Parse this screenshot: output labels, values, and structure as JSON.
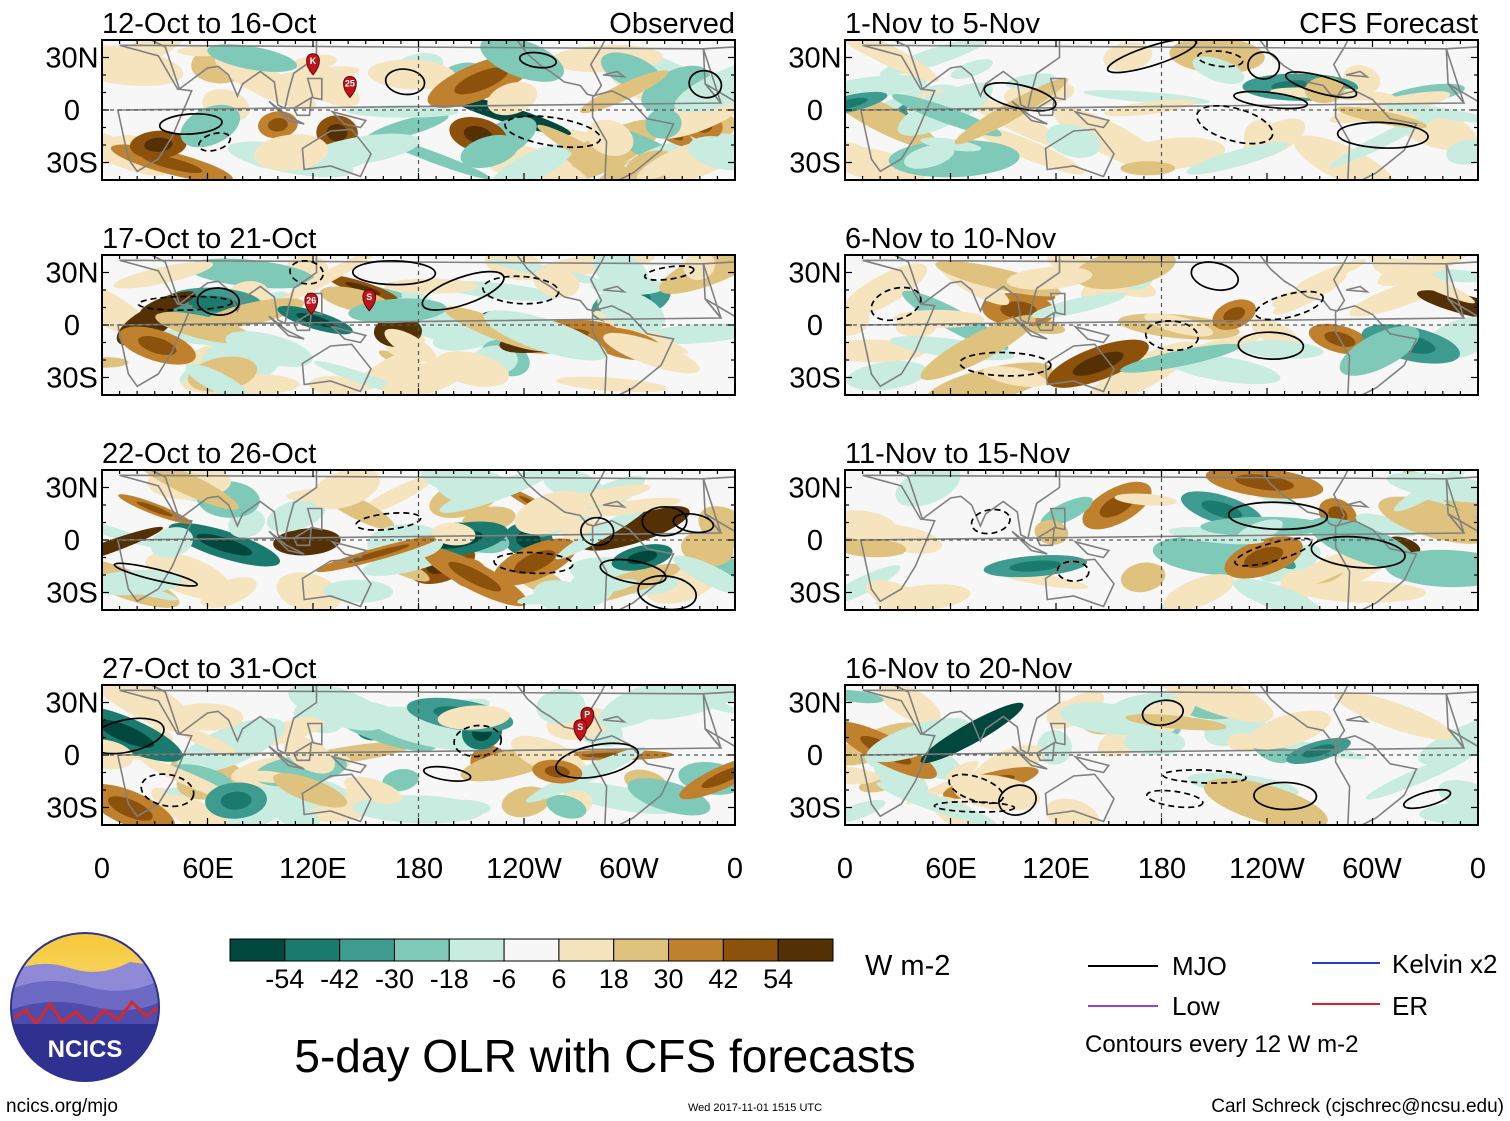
{
  "title": "5-day OLR with CFS forecasts",
  "branding": {
    "logo_text": "NCICS",
    "site": "ncics.org/mjo",
    "timestamp": "Wed 2017-11-01 1515 UTC",
    "author": "Carl Schreck (cjschrec@ncsu.edu)"
  },
  "column_labels": {
    "observed": "Observed",
    "forecast": "CFS Forecast"
  },
  "colorbar": {
    "unit": "W m-2",
    "tick_labels": [
      "-54",
      "-42",
      "-30",
      "-18",
      "-6",
      "6",
      "18",
      "30",
      "42",
      "54"
    ],
    "colors": [
      "#00473d",
      "#1b7a6e",
      "#3d9c8f",
      "#7fc9b8",
      "#c8ece0",
      "#f7f7f7",
      "#f5e4bd",
      "#dfc27d",
      "#bf812d",
      "#8c510a",
      "#543005"
    ]
  },
  "legend": {
    "items": [
      {
        "label": "MJO",
        "color": "#000000"
      },
      {
        "label": "Kelvin x2",
        "color": "#1f3fd0"
      },
      {
        "label": "Low",
        "color": "#9b3ed6"
      },
      {
        "label": "ER",
        "color": "#e0201f"
      }
    ],
    "note": "Contours every 12 W m-2"
  },
  "axes": {
    "y_tick_labels": [
      "30N",
      "0",
      "30S"
    ],
    "x_tick_labels": [
      "0",
      "60E",
      "120E",
      "180",
      "120W",
      "60W",
      "0"
    ]
  },
  "chart_data": {
    "type": "heatmap",
    "variable": "OLR anomaly",
    "units": "W m-2",
    "lon_range": [
      0,
      360
    ],
    "lat_range": [
      -40,
      40
    ],
    "panels": [
      {
        "id": "obs-1",
        "period": "12-Oct to 16-Oct",
        "kind": "Observed",
        "storms": [
          "K",
          "25"
        ]
      },
      {
        "id": "obs-2",
        "period": "17-Oct to 21-Oct",
        "kind": "Observed",
        "storms": [
          "26",
          "S"
        ]
      },
      {
        "id": "obs-3",
        "period": "22-Oct to 26-Oct",
        "kind": "Observed",
        "storms": []
      },
      {
        "id": "obs-4",
        "period": "27-Oct to 31-Oct",
        "kind": "Observed",
        "storms": [
          "P",
          "S"
        ]
      },
      {
        "id": "fc-1",
        "period": "1-Nov to 5-Nov",
        "kind": "CFS Forecast",
        "storms": []
      },
      {
        "id": "fc-2",
        "period": "6-Nov to 10-Nov",
        "kind": "CFS Forecast",
        "storms": []
      },
      {
        "id": "fc-3",
        "period": "11-Nov to 15-Nov",
        "kind": "CFS Forecast",
        "storms": []
      },
      {
        "id": "fc-4",
        "period": "16-Nov to 20-Nov",
        "kind": "CFS Forecast",
        "storms": []
      }
    ]
  }
}
